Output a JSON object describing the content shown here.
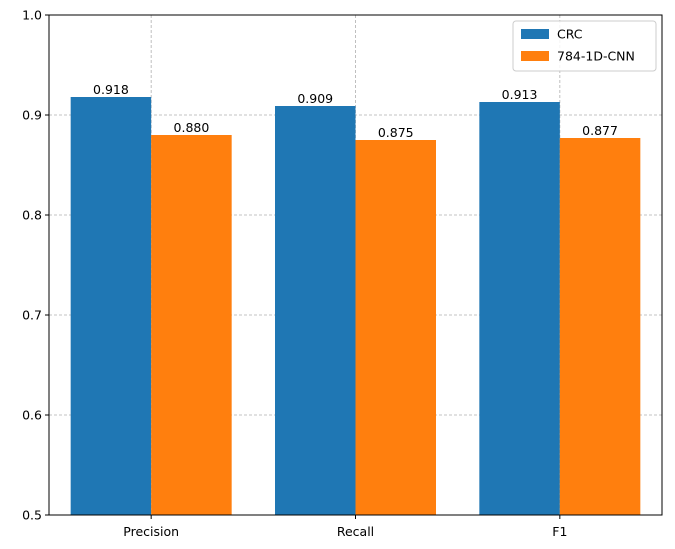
{
  "chart_data": {
    "type": "bar",
    "title": "",
    "xlabel": "",
    "ylabel": "",
    "categories": [
      "Precision",
      "Recall",
      "F1"
    ],
    "series": [
      {
        "name": "CRC",
        "color": "#1f77b4",
        "values": [
          0.918,
          0.909,
          0.913
        ],
        "labels": [
          "0.918",
          "0.909",
          "0.913"
        ]
      },
      {
        "name": "784-1D-CNN",
        "color": "#ff7f0e",
        "values": [
          0.88,
          0.875,
          0.877
        ],
        "labels": [
          "0.880",
          "0.875",
          "0.877"
        ]
      }
    ],
    "ylim": [
      0.5,
      1.0
    ],
    "yticks": [
      0.5,
      0.6,
      0.7,
      0.8,
      0.9,
      1.0
    ],
    "ytick_labels": [
      "0.5",
      "0.6",
      "0.7",
      "0.8",
      "0.9",
      "1.0"
    ],
    "grid": true,
    "legend_position": "top-right"
  }
}
